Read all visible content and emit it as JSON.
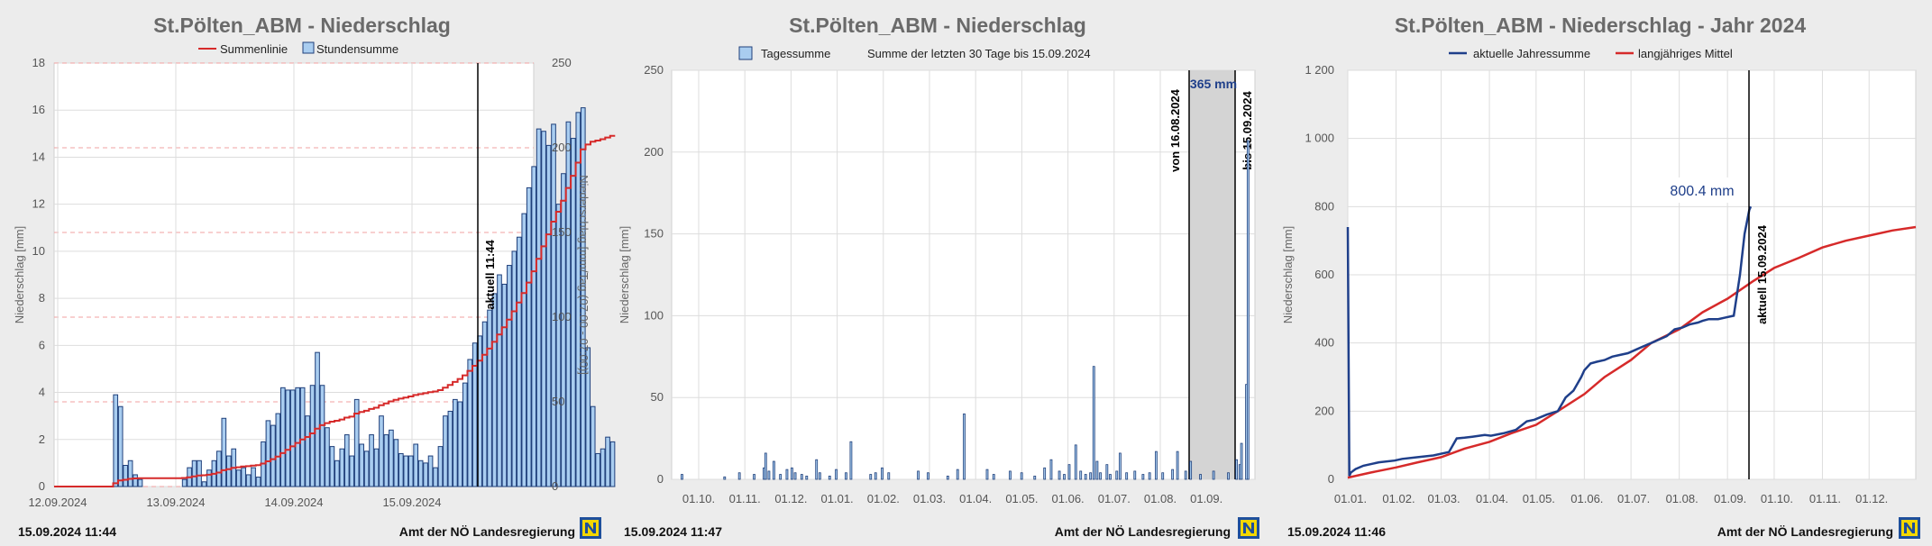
{
  "chart_data": [
    {
      "type": "bar",
      "title": "St.Pölten_ABM - Niederschlag",
      "legend": [
        "Summenlinie",
        "Stundensumme"
      ],
      "ylabel_left": "Niederschlag [mm]",
      "ylabel_right": "Niederschlag [mm/Tag (07:00 - 07:00)]",
      "ylim_left": [
        0,
        18
      ],
      "ylim_right": [
        0,
        250
      ],
      "yticks_left": [
        "0",
        "2",
        "4",
        "6",
        "8",
        "10",
        "12",
        "14",
        "16",
        "18"
      ],
      "yticks_right": [
        "0",
        "50",
        "100",
        "150",
        "200",
        "250"
      ],
      "xticks": [
        "12.09.2024",
        "13.09.2024",
        "14.09.2024",
        "15.09.2024"
      ],
      "marker_label": "aktuell 11:44",
      "hourly_values": [
        0,
        0,
        0,
        0,
        0,
        0,
        0,
        0,
        0,
        0,
        0,
        0,
        3.9,
        3.4,
        0.9,
        1.1,
        0.5,
        0.3,
        0,
        0,
        0,
        0,
        0,
        0,
        0,
        0,
        0.3,
        0.8,
        1.1,
        1.1,
        0.2,
        0.7,
        1.1,
        1.5,
        2.9,
        1.3,
        1.6,
        0.7,
        0.8,
        0.5,
        0.8,
        0.4,
        1.9,
        2.8,
        2.6,
        3.1,
        4.2,
        4.1,
        4.1,
        4.2,
        4.2,
        3.0,
        4.3,
        5.7,
        4.3,
        2.5,
        1.7,
        1.1,
        1.6,
        2.2,
        1.3,
        3.7,
        1.8,
        1.5,
        2.2,
        1.6,
        3.0,
        2.2,
        2.4,
        2.0,
        1.4,
        1.3,
        1.3,
        1.8,
        1.1,
        1.0,
        1.3,
        0.8,
        1.7,
        3.0,
        3.2,
        3.7,
        3.6,
        4.4,
        5.4,
        6.1,
        6.4,
        7.0,
        7.5,
        8.2,
        9.0,
        8.6,
        9.4,
        10.0,
        10.6,
        11.6,
        12.7,
        13.6,
        15.2,
        15.1,
        14.5,
        15.4,
        12.0,
        13.3,
        15.5,
        14.8,
        15.9,
        16.1,
        5.9,
        3.4,
        1.4,
        1.6,
        2.1,
        1.9
      ],
      "cumulative_label_value": 207,
      "marker_note": "aktuell 11:44"
    },
    {
      "type": "bar",
      "title": "St.Pölten_ABM - Niederschlag",
      "legend": [
        "Tagessumme",
        "Summe der letzten 30 Tage bis 15.09.2024"
      ],
      "ylabel": "Niederschlag [mm]",
      "ylim": [
        0,
        250
      ],
      "yticks": [
        "0",
        "50",
        "100",
        "150",
        "200",
        "250"
      ],
      "xticks": [
        "01.10.",
        "01.11.",
        "01.12.",
        "01.01.",
        "01.02.",
        "01.03.",
        "01.04.",
        "01.05.",
        "01.06.",
        "01.07.",
        "01.08.",
        "01.09."
      ],
      "band_label": "365 mm",
      "band_from": "von 16.08.2024",
      "band_to": "bis 15.09.2024",
      "daily_values": [
        {
          "day": 3,
          "value": 3
        },
        {
          "day": 29,
          "value": 1.5
        },
        {
          "day": 38,
          "value": 4
        },
        {
          "day": 47,
          "value": 3
        },
        {
          "day": 53,
          "value": 7
        },
        {
          "day": 54,
          "value": 16
        },
        {
          "day": 56,
          "value": 5
        },
        {
          "day": 59,
          "value": 11
        },
        {
          "day": 63,
          "value": 3
        },
        {
          "day": 67,
          "value": 6
        },
        {
          "day": 70,
          "value": 7
        },
        {
          "day": 72,
          "value": 4
        },
        {
          "day": 76,
          "value": 3
        },
        {
          "day": 79,
          "value": 2
        },
        {
          "day": 85,
          "value": 12
        },
        {
          "day": 87,
          "value": 4
        },
        {
          "day": 93,
          "value": 2
        },
        {
          "day": 97,
          "value": 6
        },
        {
          "day": 103,
          "value": 4
        },
        {
          "day": 106,
          "value": 23
        },
        {
          "day": 118,
          "value": 3
        },
        {
          "day": 121,
          "value": 4
        },
        {
          "day": 125,
          "value": 7
        },
        {
          "day": 129,
          "value": 4
        },
        {
          "day": 147,
          "value": 5
        },
        {
          "day": 153,
          "value": 4
        },
        {
          "day": 165,
          "value": 2
        },
        {
          "day": 171,
          "value": 6
        },
        {
          "day": 175,
          "value": 40
        },
        {
          "day": 189,
          "value": 6
        },
        {
          "day": 193,
          "value": 3
        },
        {
          "day": 203,
          "value": 5
        },
        {
          "day": 210,
          "value": 4
        },
        {
          "day": 218,
          "value": 2
        },
        {
          "day": 224,
          "value": 7
        },
        {
          "day": 228,
          "value": 12
        },
        {
          "day": 233,
          "value": 5
        },
        {
          "day": 236,
          "value": 3
        },
        {
          "day": 239,
          "value": 9
        },
        {
          "day": 243,
          "value": 21
        },
        {
          "day": 246,
          "value": 5
        },
        {
          "day": 249,
          "value": 3
        },
        {
          "day": 252,
          "value": 4
        },
        {
          "day": 254,
          "value": 69
        },
        {
          "day": 256,
          "value": 11
        },
        {
          "day": 258,
          "value": 4
        },
        {
          "day": 262,
          "value": 9
        },
        {
          "day": 264,
          "value": 3
        },
        {
          "day": 268,
          "value": 5
        },
        {
          "day": 270,
          "value": 16
        },
        {
          "day": 274,
          "value": 4
        },
        {
          "day": 279,
          "value": 5
        },
        {
          "day": 284,
          "value": 3
        },
        {
          "day": 288,
          "value": 4
        },
        {
          "day": 292,
          "value": 17
        },
        {
          "day": 296,
          "value": 4
        },
        {
          "day": 302,
          "value": 6
        },
        {
          "day": 305,
          "value": 17
        },
        {
          "day": 310,
          "value": 5
        },
        {
          "day": 313,
          "value": 11
        },
        {
          "day": 319,
          "value": 3
        },
        {
          "day": 327,
          "value": 5
        },
        {
          "day": 336,
          "value": 4
        },
        {
          "day": 341,
          "value": 12
        },
        {
          "day": 343,
          "value": 9
        },
        {
          "day": 344,
          "value": 22
        },
        {
          "day": 347,
          "value": 58
        },
        {
          "day": 348,
          "value": 207
        }
      ]
    },
    {
      "type": "line",
      "title": "St.Pölten_ABM - Niederschlag - Jahr 2024",
      "legend": [
        "aktuelle Jahressumme",
        "langjähriges Mittel"
      ],
      "ylabel": "Niederschlag [mm]",
      "ylim": [
        0,
        1200
      ],
      "yticks": [
        "0",
        "200",
        "400",
        "600",
        "800",
        "1 000",
        "1 200"
      ],
      "xticks": [
        "01.01.",
        "01.02.",
        "01.03.",
        "01.04.",
        "01.05.",
        "01.06.",
        "01.07.",
        "01.08.",
        "01.09.",
        "01.10.",
        "01.11.",
        "01.12."
      ],
      "annotation": "800.4 mm",
      "marker_label": "aktuell 15.09.2024",
      "series": [
        {
          "name": "aktuelle Jahressumme",
          "color": "#1f3f8a",
          "x": [
            0,
            1,
            2,
            5,
            10,
            20,
            30,
            35,
            45,
            55,
            65,
            70,
            75,
            80,
            88,
            92,
            100,
            108,
            115,
            120,
            128,
            135,
            140,
            145,
            150,
            152,
            156,
            160,
            165,
            170,
            175,
            180,
            185,
            190,
            195,
            200,
            205,
            210,
            215,
            220,
            225,
            228,
            232,
            238,
            243,
            248,
            252,
            255,
            258,
            259
          ],
          "y": [
            740,
            10,
            20,
            30,
            40,
            50,
            55,
            60,
            65,
            70,
            80,
            120,
            122,
            125,
            130,
            128,
            135,
            145,
            170,
            175,
            190,
            200,
            240,
            260,
            300,
            320,
            340,
            345,
            350,
            360,
            365,
            370,
            380,
            390,
            400,
            410,
            420,
            440,
            445,
            455,
            460,
            465,
            470,
            470,
            475,
            480,
            600,
            720,
            790,
            800
          ]
        },
        {
          "name": "langjähriges Mittel",
          "color": "#d62a2a",
          "x": [
            0,
            15,
            31,
            45,
            60,
            75,
            91,
            105,
            121,
            135,
            152,
            165,
            182,
            195,
            213,
            228,
            244,
            260,
            274,
            290,
            305,
            320,
            335,
            350,
            365
          ],
          "y": [
            5,
            20,
            35,
            50,
            65,
            90,
            110,
            135,
            160,
            200,
            250,
            300,
            350,
            400,
            440,
            490,
            530,
            580,
            620,
            650,
            680,
            700,
            715,
            730,
            740
          ]
        }
      ]
    }
  ],
  "footers": [
    {
      "time": "15.09.2024 11:44",
      "org": "Amt der NÖ Landesregierung"
    },
    {
      "time": "15.09.2024 11:47",
      "org": "Amt der NÖ Landesregierung"
    },
    {
      "time": "15.09.2024 11:46",
      "org": "Amt der NÖ Landesregierung"
    }
  ],
  "colors": {
    "bar_fill": "#a9cdf0",
    "bar_stroke": "#1f3f7a",
    "red": "#d62a2a",
    "navy": "#1f3f8a",
    "logo_blue": "#1e4f9c",
    "logo_yellow": "#f3d700"
  }
}
